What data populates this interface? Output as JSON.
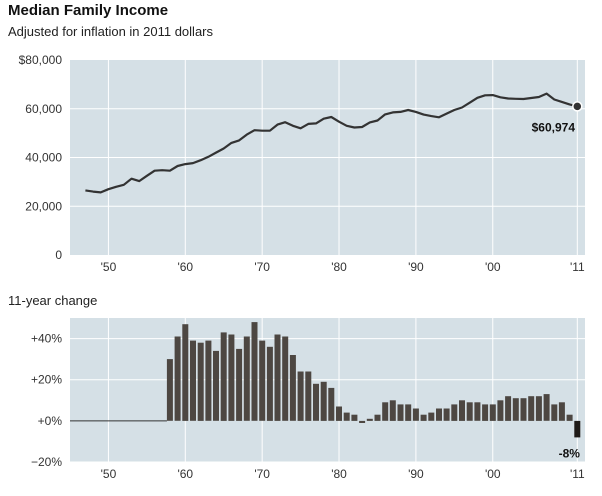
{
  "header": {
    "title": "Median Family Income",
    "subtitle": "Adjusted for inflation in 2011 dollars",
    "section_label": "11-year change"
  },
  "colors": {
    "panel": "#d5e0e6",
    "grid": "#ffffff",
    "line": "#333333",
    "bar": "#4d4742",
    "bar_last": "#1e1a17"
  },
  "chart_data": [
    {
      "type": "line",
      "title": "Median Family Income",
      "subtitle": "Adjusted for inflation in 2011 dollars",
      "xlabel": "",
      "ylabel": "",
      "xlim": [
        1945,
        2012
      ],
      "ylim": [
        0,
        80000
      ],
      "x_ticks": [
        1950,
        1960,
        1970,
        1980,
        1990,
        2000,
        2011
      ],
      "x_tick_labels": [
        "'50",
        "'60",
        "'70",
        "'80",
        "'90",
        "'00",
        "'11"
      ],
      "y_ticks": [
        0,
        20000,
        40000,
        60000,
        80000
      ],
      "y_tick_labels": [
        "0",
        "20,000",
        "40,000",
        "60,000",
        "$80,000"
      ],
      "x": [
        1947,
        1948,
        1949,
        1950,
        1951,
        1952,
        1953,
        1954,
        1955,
        1956,
        1957,
        1958,
        1959,
        1960,
        1961,
        1962,
        1963,
        1964,
        1965,
        1966,
        1967,
        1968,
        1969,
        1970,
        1971,
        1972,
        1973,
        1974,
        1975,
        1976,
        1977,
        1978,
        1979,
        1980,
        1981,
        1982,
        1983,
        1984,
        1985,
        1986,
        1987,
        1988,
        1989,
        1990,
        1991,
        1992,
        1993,
        1994,
        1995,
        1996,
        1997,
        1998,
        1999,
        2000,
        2001,
        2002,
        2003,
        2004,
        2005,
        2006,
        2007,
        2008,
        2009,
        2010,
        2011
      ],
      "values": [
        26500,
        26000,
        25700,
        27000,
        28000,
        28800,
        31300,
        30300,
        32500,
        34600,
        34800,
        34600,
        36500,
        37300,
        37700,
        38900,
        40300,
        42000,
        43700,
        46000,
        47000,
        49400,
        51200,
        51000,
        51000,
        53500,
        54500,
        53000,
        52000,
        53800,
        54000,
        55900,
        56600,
        54700,
        53000,
        52300,
        52500,
        54400,
        55200,
        57700,
        58500,
        58700,
        59500,
        58700,
        57600,
        57000,
        56500,
        58000,
        59500,
        60500,
        62500,
        64500,
        65500,
        65600,
        64700,
        64200,
        64100,
        64000,
        64400,
        64800,
        66200,
        63800,
        62800,
        61800,
        60974
      ],
      "annotation": "$60,974"
    },
    {
      "type": "bar",
      "title": "11-year change",
      "xlim": [
        1945,
        2012
      ],
      "ylim": [
        -20,
        50
      ],
      "x_ticks": [
        1950,
        1960,
        1970,
        1980,
        1990,
        2000,
        2011
      ],
      "x_tick_labels": [
        "'50",
        "'60",
        "'70",
        "'80",
        "'90",
        "'00",
        "'11"
      ],
      "y_ticks": [
        -20,
        0,
        20,
        40
      ],
      "y_tick_labels": [
        "−20%",
        "+0%",
        "+20%",
        "+40%"
      ],
      "x": [
        1958,
        1959,
        1960,
        1961,
        1962,
        1963,
        1964,
        1965,
        1966,
        1967,
        1968,
        1969,
        1970,
        1971,
        1972,
        1973,
        1974,
        1975,
        1976,
        1977,
        1978,
        1979,
        1980,
        1981,
        1982,
        1983,
        1984,
        1985,
        1986,
        1987,
        1988,
        1989,
        1990,
        1991,
        1992,
        1993,
        1994,
        1995,
        1996,
        1997,
        1998,
        1999,
        2000,
        2001,
        2002,
        2003,
        2004,
        2005,
        2006,
        2007,
        2008,
        2009,
        2010,
        2011
      ],
      "values": [
        30,
        41,
        47,
        39,
        38,
        39,
        34,
        43,
        42,
        35,
        41,
        48,
        39,
        36,
        42,
        41,
        32,
        24,
        24,
        18,
        19,
        16,
        7,
        4,
        3,
        -1,
        1,
        3,
        9,
        10,
        8,
        8,
        6,
        3,
        4,
        6,
        6,
        8,
        10,
        9,
        9,
        8,
        8,
        10,
        12,
        11,
        11,
        12,
        12,
        13,
        8,
        9,
        3,
        -8
      ],
      "annotation": "-8%"
    }
  ]
}
